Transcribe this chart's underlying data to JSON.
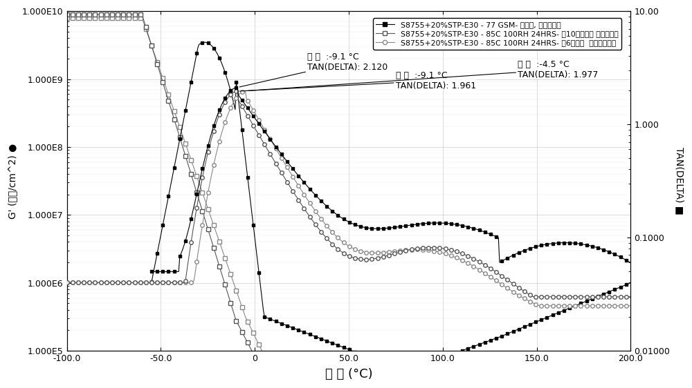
{
  "xlabel": "温 度 (°C)",
  "ylabel_left": "G' (达因/cm^2) ●",
  "ylabel_right": "TAN(DELTA) ■",
  "xlim": [
    -100,
    200
  ],
  "ylim_left": [
    100000.0,
    20000000000.0
  ],
  "ylim_right": [
    0.01,
    10.0
  ],
  "legend": [
    "S8755+20%STP-E30 - 77 GSM- 原始的, 第一次升温",
    "S8755+20%STP-E30 - 85C 100RH 24HRS- 在10分钟以后 第一次升温",
    "S8755+20%STP-E30 - 85C 100RH 24HRS- 在6天以后  ，第一次升温"
  ],
  "background_color": "#ffffff"
}
